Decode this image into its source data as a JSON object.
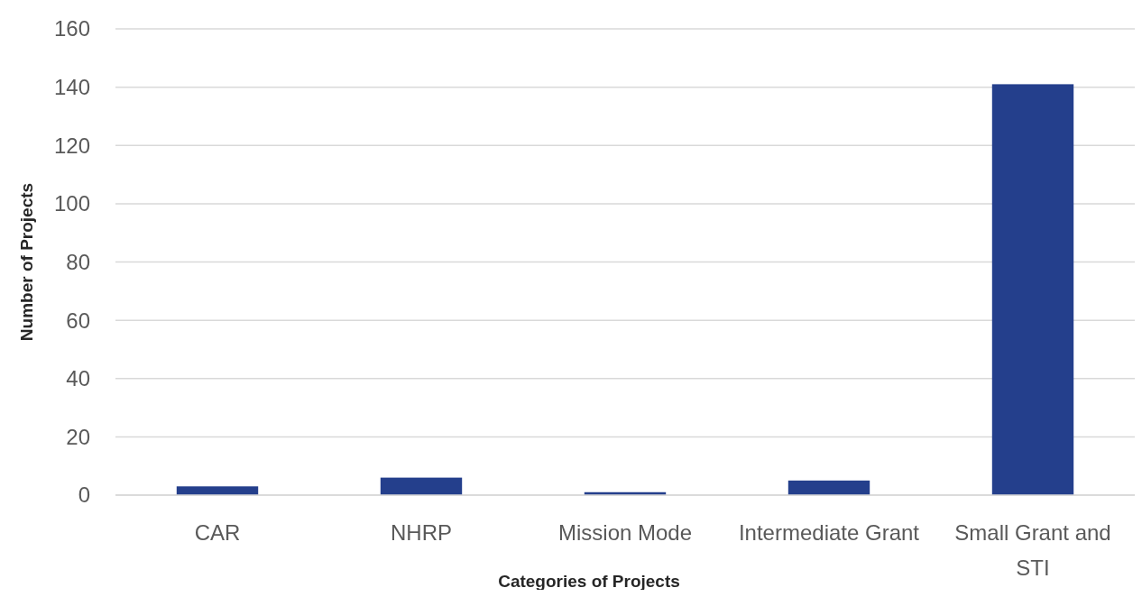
{
  "chart_data": {
    "type": "bar",
    "xlabel": "Categories of Projects",
    "ylabel": "Number of Projects",
    "categories": [
      "CAR",
      "NHRP",
      "Mission Mode",
      "Intermediate Grant",
      "Small Grant and STI"
    ],
    "values": [
      3,
      6,
      1,
      5,
      141
    ],
    "color": "#243f8c",
    "ylim": [
      0,
      160
    ],
    "yticks": [
      0,
      20,
      40,
      60,
      80,
      100,
      120,
      140,
      160
    ],
    "grid": "y"
  }
}
